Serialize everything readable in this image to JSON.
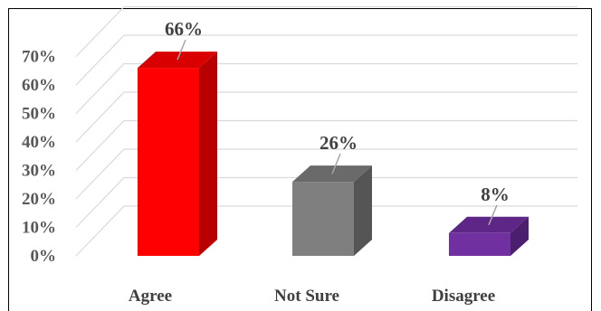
{
  "chart_data": {
    "type": "bar",
    "three_d": true,
    "categories": [
      "Agree",
      "Not Sure",
      "Disagree"
    ],
    "values": [
      66,
      26,
      8
    ],
    "data_labels": [
      "66%",
      "26%",
      "8%"
    ],
    "colors": [
      "#ff0000",
      "#7f7f7f",
      "#7030a0"
    ],
    "side_colors": [
      "#b80000",
      "#555555",
      "#4b1f6e"
    ],
    "top_colors": [
      "#d80000",
      "#6a6a6a",
      "#5e2687"
    ],
    "yticks": [
      "0%",
      "10%",
      "20%",
      "30%",
      "40%",
      "50%",
      "60%",
      "70%"
    ],
    "ylim": [
      0,
      70
    ],
    "grid": true,
    "legend": "none",
    "title": "",
    "xlabel": "",
    "ylabel": ""
  }
}
